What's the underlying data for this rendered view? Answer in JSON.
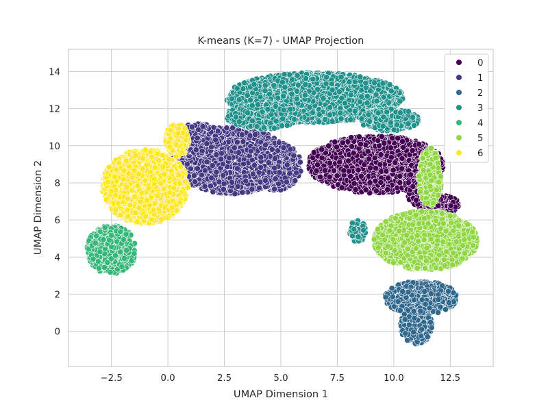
{
  "chart_data": {
    "type": "scatter",
    "title": "K-means (K=7) - UMAP Projection",
    "xlabel": "UMAP Dimension 1",
    "ylabel": "UMAP Dimension 2",
    "xlim": [
      -4.4,
      14.4
    ],
    "ylim": [
      -1.9,
      15.2
    ],
    "x_ticks": [
      -2.5,
      0.0,
      2.5,
      5.0,
      7.5,
      10.0,
      12.5
    ],
    "x_tick_labels": [
      "−2.5",
      "0.0",
      "2.5",
      "5.0",
      "7.5",
      "10.0",
      "12.5"
    ],
    "y_ticks": [
      0,
      2,
      4,
      6,
      8,
      10,
      12,
      14
    ],
    "y_tick_labels": [
      "0",
      "2",
      "4",
      "6",
      "8",
      "10",
      "12",
      "14"
    ],
    "grid": true,
    "legend_position": "top-right",
    "series": [
      {
        "name": "0",
        "color": "#440154",
        "regions": [
          {
            "cx": 9.2,
            "cy": 9.0,
            "rx": 3.0,
            "ry": 1.55
          },
          {
            "cx": 11.3,
            "cy": 8.0,
            "rx": 0.8,
            "ry": 1.4
          },
          {
            "cx": 12.2,
            "cy": 6.8,
            "rx": 0.7,
            "ry": 0.5
          }
        ]
      },
      {
        "name": "1",
        "color": "#443983",
        "regions": [
          {
            "cx": 2.8,
            "cy": 9.2,
            "rx": 2.6,
            "ry": 1.8
          },
          {
            "cx": 4.8,
            "cy": 8.9,
            "rx": 1.1,
            "ry": 1.3
          },
          {
            "cx": 1.3,
            "cy": 10.4,
            "rx": 1.1,
            "ry": 0.8
          }
        ]
      },
      {
        "name": "2",
        "color": "#31688e",
        "regions": [
          {
            "cx": 11.2,
            "cy": 1.8,
            "rx": 1.6,
            "ry": 0.9
          },
          {
            "cx": 11.0,
            "cy": 0.3,
            "rx": 0.7,
            "ry": 1.0
          }
        ]
      },
      {
        "name": "3",
        "color": "#21918c",
        "regions": [
          {
            "cx": 6.5,
            "cy": 12.6,
            "rx": 3.9,
            "ry": 1.35
          },
          {
            "cx": 4.2,
            "cy": 11.6,
            "rx": 1.6,
            "ry": 0.7
          },
          {
            "cx": 9.8,
            "cy": 11.4,
            "rx": 1.3,
            "ry": 0.6
          },
          {
            "cx": 8.4,
            "cy": 5.4,
            "rx": 0.35,
            "ry": 0.6
          }
        ]
      },
      {
        "name": "4",
        "color": "#35b779",
        "regions": [
          {
            "cx": -2.5,
            "cy": 4.4,
            "rx": 1.1,
            "ry": 1.3
          }
        ]
      },
      {
        "name": "5",
        "color": "#90d743",
        "regions": [
          {
            "cx": 11.4,
            "cy": 4.9,
            "rx": 2.3,
            "ry": 1.6
          },
          {
            "cx": 11.6,
            "cy": 8.3,
            "rx": 0.5,
            "ry": 1.6
          }
        ]
      },
      {
        "name": "6",
        "color": "#fde725",
        "regions": [
          {
            "cx": -1.0,
            "cy": 7.8,
            "rx": 1.9,
            "ry": 2.0
          },
          {
            "cx": 0.4,
            "cy": 10.3,
            "rx": 0.5,
            "ry": 0.9
          }
        ]
      }
    ]
  }
}
